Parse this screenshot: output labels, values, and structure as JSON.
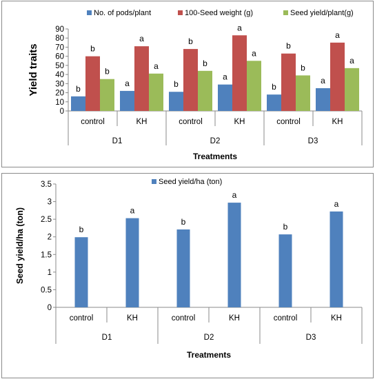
{
  "chart_data": [
    {
      "type": "bar",
      "ylabel": "Yield  traits",
      "xlabel": "Treatments",
      "ylim": [
        0,
        90
      ],
      "yticks": [
        0,
        10,
        20,
        30,
        40,
        50,
        60,
        70,
        80,
        90
      ],
      "groups": [
        "D1",
        "D2",
        "D3"
      ],
      "categories": [
        "control",
        "KH",
        "control",
        "KH",
        "control",
        "KH"
      ],
      "legend_position": "top",
      "grid": false,
      "series": [
        {
          "name": "No. of pods/plant",
          "color": "#4f81bd",
          "values": [
            16,
            22,
            21,
            29,
            18,
            25
          ],
          "labels": [
            "b",
            "a",
            "b",
            "a",
            "b",
            "a"
          ]
        },
        {
          "name": "100-Seed weight (g)",
          "color": "#c0504d",
          "values": [
            60,
            71,
            68,
            83,
            63,
            75
          ],
          "labels": [
            "b",
            "a",
            "b",
            "a",
            "b",
            "a"
          ]
        },
        {
          "name": "Seed yield/plant(g)",
          "color": "#9bbb59",
          "values": [
            35,
            41,
            44,
            55,
            39,
            47
          ],
          "labels": [
            "b",
            "a",
            "b",
            "a",
            "b",
            "a"
          ]
        }
      ]
    },
    {
      "type": "bar",
      "ylabel": "Seed yield/ha (ton)",
      "xlabel": "Treatments",
      "ylim": [
        0,
        3.5
      ],
      "yticks": [
        "0",
        "0.5",
        "1",
        "1.5",
        "2",
        "2.5",
        "3",
        "3.5"
      ],
      "groups": [
        "D1",
        "D2",
        "D3"
      ],
      "categories": [
        "control",
        "KH",
        "control",
        "KH",
        "control",
        "KH"
      ],
      "legend_position": "top",
      "grid": false,
      "series": [
        {
          "name": "Seed yield/ha (ton)",
          "color": "#4f81bd",
          "values": [
            1.99,
            2.53,
            2.21,
            2.97,
            2.07,
            2.72
          ],
          "labels": [
            "b",
            "a",
            "b",
            "a",
            "b",
            "a"
          ]
        }
      ]
    }
  ]
}
